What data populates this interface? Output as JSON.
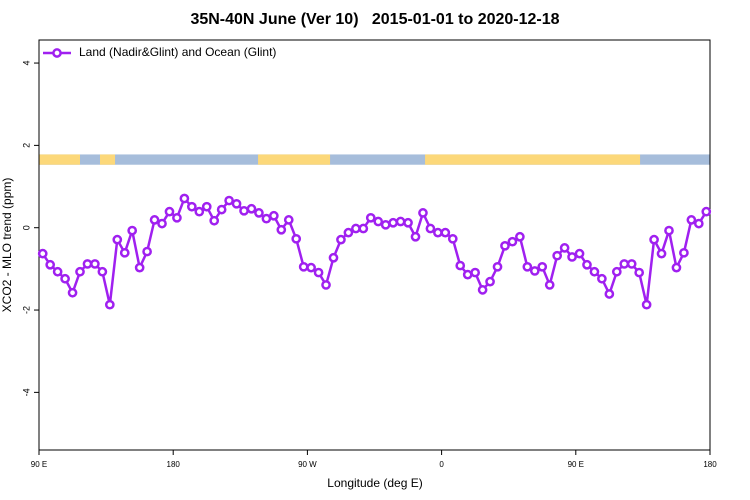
{
  "chart_data": {
    "type": "line",
    "title": "35N-40N June (Ver 10)   2015-01-01 to 2020-12-18",
    "xlabel": "Longitude (deg E)",
    "ylabel": "XCO2 - MLO trend (ppm)",
    "xlim": [
      90,
      540
    ],
    "xticks": [
      {
        "value": 90,
        "label": "90 E"
      },
      {
        "value": 180,
        "label": "180"
      },
      {
        "value": 270,
        "label": "90 W"
      },
      {
        "value": 360,
        "label": "0"
      },
      {
        "value": 450,
        "label": "90 E"
      },
      {
        "value": 540,
        "label": "180"
      }
    ],
    "ylim": [
      -5.4,
      4.56
    ],
    "yticks": [
      -4,
      -2,
      0,
      2,
      4
    ],
    "legend": "top-left",
    "surface_band": {
      "ylim": [
        1.53,
        1.78
      ],
      "ocean_color": "#a6bddb",
      "land_color": "#fcd87a",
      "land": [
        [
          90,
          117.5
        ],
        [
          130.9,
          141
        ],
        [
          236.9,
          285.2
        ],
        [
          348.9,
          493.1
        ]
      ]
    },
    "x": [
      92.5,
      97.5,
      102.5,
      107.5,
      112.5,
      117.5,
      122.5,
      127.5,
      132.5,
      137.5,
      142.5,
      147.5,
      152.5,
      157.5,
      162.5,
      167.5,
      172.5,
      177.5,
      182.5,
      187.5,
      192.5,
      197.5,
      202.5,
      207.5,
      212.5,
      217.5,
      222.5,
      227.5,
      232.5,
      237.5,
      242.5,
      247.5,
      252.5,
      257.5,
      262.5,
      267.5,
      272.5,
      277.5,
      282.5,
      287.5,
      292.5,
      297.5,
      302.5,
      307.5,
      312.5,
      317.5,
      322.5,
      327.5,
      332.5,
      337.5,
      342.5,
      347.5,
      352.5,
      357.5,
      362.5,
      367.5,
      372.5,
      377.5,
      382.5,
      387.5,
      392.5,
      397.5,
      402.5,
      407.5,
      412.5,
      417.5,
      422.5,
      427.5,
      432.5,
      437.5,
      442.5,
      447.5,
      452.5,
      457.5,
      462.5,
      467.5,
      472.5,
      477.5,
      482.5,
      487.5,
      492.5,
      497.5,
      502.5,
      507.5,
      512.5,
      517.5,
      522.5,
      527.5,
      532.5,
      537.5
    ],
    "series": [
      {
        "name": "Land (Nadir&Glint) and Ocean (Glint)",
        "color": "#a020f0",
        "values": [
          -0.63,
          -0.9,
          -1.07,
          -1.24,
          -1.58,
          -1.07,
          -0.88,
          -0.88,
          -1.07,
          -1.87,
          -0.29,
          -0.61,
          -0.07,
          -0.97,
          -0.58,
          0.19,
          0.1,
          0.39,
          0.24,
          0.71,
          0.51,
          0.39,
          0.51,
          0.17,
          0.44,
          0.66,
          0.58,
          0.41,
          0.46,
          0.36,
          0.22,
          0.29,
          -0.05,
          0.19,
          -0.27,
          -0.95,
          -0.97,
          -1.09,
          -1.39,
          -0.73,
          -0.29,
          -0.12,
          -0.02,
          -0.02,
          0.24,
          0.15,
          0.07,
          0.12,
          0.15,
          0.12,
          -0.22,
          0.36,
          -0.02,
          -0.12,
          -0.12,
          -0.27,
          -0.92,
          -1.14,
          -1.09,
          -1.51,
          -1.31,
          -0.95,
          -0.44,
          -0.34,
          -0.22,
          -0.95,
          -1.05,
          -0.95,
          -1.39,
          -0.68,
          -0.49,
          -0.71,
          -0.63,
          -0.9,
          -1.07,
          -1.24,
          -1.61,
          -1.07,
          -0.88,
          -0.88,
          -1.09,
          -1.87,
          -0.29,
          -0.63,
          -0.07,
          -0.97,
          -0.61,
          0.19,
          0.1,
          0.39
        ]
      }
    ]
  }
}
